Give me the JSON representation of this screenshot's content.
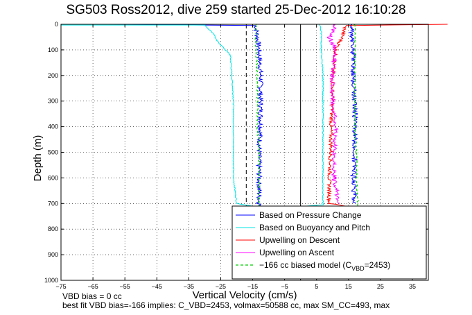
{
  "chart_data": {
    "type": "line",
    "title": "SG503 Ross2012, dive 259 started 25-Dec-2012 16:10:28",
    "xlabel": "Vertical Velocity (cm/s)",
    "ylabel": "Depth (m)",
    "xlim": [
      -75,
      40
    ],
    "ylim": [
      0,
      1000
    ],
    "y_reversed": true,
    "x_ticks": [
      -75,
      -65,
      -55,
      -45,
      -35,
      -25,
      -15,
      -5,
      5,
      15,
      25,
      35
    ],
    "y_ticks": [
      0,
      100,
      200,
      300,
      400,
      500,
      600,
      700,
      800,
      900,
      1000
    ],
    "grid": true,
    "legend_position": "bottom-right",
    "reference_lines": [
      {
        "x": -17,
        "style": "dashed",
        "color": "#000000"
      },
      {
        "x": 0,
        "style": "solid",
        "color": "#000000"
      }
    ],
    "series": [
      {
        "name": "Based on Pressure Change",
        "color": "#0000ff",
        "style": "solid",
        "group": "descent",
        "x": [
          -60,
          -14,
          -13.5,
          -13,
          -12.5,
          -12.5,
          -12.5,
          -13,
          -13,
          -13,
          -12.5
        ],
        "y": [
          0,
          5,
          50,
          100,
          200,
          300,
          400,
          500,
          600,
          700,
          712
        ]
      },
      {
        "name": "Based on Buoyancy and Pitch",
        "color": "#00e5e5",
        "style": "solid",
        "group": "descent",
        "x": [
          -75,
          -30,
          -27,
          -26.5,
          -22,
          -21.5,
          -21,
          -21,
          -21,
          -21,
          -20,
          -14
        ],
        "y": [
          3,
          3,
          40,
          60,
          120,
          200,
          300,
          400,
          500,
          600,
          700,
          712
        ]
      },
      {
        "name": "Based on Pressure Change",
        "color": "#0000ff",
        "style": "solid",
        "group": "ascent",
        "x": [
          17,
          16.5,
          17,
          17,
          17,
          16.5,
          16.5,
          16,
          16,
          16
        ],
        "y": [
          700,
          600,
          500,
          400,
          300,
          200,
          100,
          50,
          5,
          0
        ]
      },
      {
        "name": "Based on Buoyancy and Pitch",
        "color": "#00e5e5",
        "style": "solid",
        "group": "ascent",
        "x": [
          0,
          7,
          7,
          7,
          7,
          6.5,
          6.5,
          6
        ],
        "y": [
          712,
          705,
          600,
          400,
          200,
          100,
          30,
          0
        ]
      },
      {
        "name": "Upwelling on Descent",
        "color": "#ff0000",
        "style": "solid",
        "group": "descent",
        "x": [
          46,
          14,
          13,
          11,
          10,
          10,
          9.5,
          9.5,
          9,
          9,
          15
        ],
        "y": [
          0,
          5,
          50,
          100,
          200,
          300,
          400,
          500,
          600,
          700,
          712
        ]
      },
      {
        "name": "Upwelling on Ascent",
        "color": "#ff00ff",
        "style": "solid",
        "group": "ascent",
        "x": [
          12,
          10.5,
          10.5,
          11,
          10,
          10,
          11,
          9,
          11
        ],
        "y": [
          700,
          600,
          500,
          400,
          300,
          200,
          100,
          50,
          0
        ]
      },
      {
        "name": "-166 cc biased model (C_VBD=2453)",
        "color": "#00cc00",
        "style": "dashed",
        "group": "descent",
        "x": [
          -14,
          -14,
          -13.5,
          -13.5,
          -13.5,
          -13,
          -13,
          -13
        ],
        "y": [
          0,
          100,
          200,
          300,
          400,
          500,
          600,
          712
        ]
      },
      {
        "name": "-166 cc biased model (C_VBD=2453)",
        "color": "#00cc00",
        "style": "dashed",
        "group": "ascent",
        "x": [
          18,
          17.5,
          17.5,
          17,
          17,
          17,
          17
        ],
        "y": [
          712,
          600,
          500,
          400,
          300,
          200,
          0
        ]
      }
    ],
    "legend": [
      {
        "label": "Based on Pressure Change",
        "color": "#0000ff",
        "style": "solid"
      },
      {
        "label": "Based on Buoyancy and Pitch",
        "color": "#00e5e5",
        "style": "solid"
      },
      {
        "label": "Upwelling on Descent",
        "color": "#ff0000",
        "style": "solid"
      },
      {
        "label": "Upwelling on Ascent",
        "color": "#ff00ff",
        "style": "solid"
      },
      {
        "label": "−166 cc biased model (C",
        "sub": "VBD",
        "suffix": "=2453)",
        "color": "#00cc00",
        "style": "dashed"
      }
    ]
  },
  "footer": {
    "line1": "VBD bias = 0 cc",
    "line2": "best fit VBD bias=-166 implies: C_VBD=2453, volmax=50588 cc, max SM_CC=493, max"
  }
}
